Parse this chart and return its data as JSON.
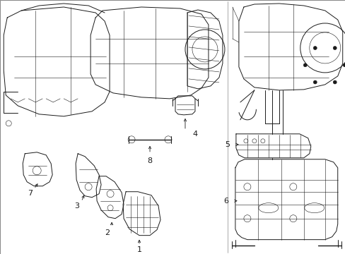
{
  "bg_color": "#ffffff",
  "line_color": "#1a1a1a",
  "figsize": [
    4.89,
    3.6
  ],
  "dpi": 100,
  "border_color": "#000000",
  "lw_main": 0.7,
  "lw_thin": 0.4,
  "lw_thick": 1.0,
  "label_fontsize": 7.5
}
